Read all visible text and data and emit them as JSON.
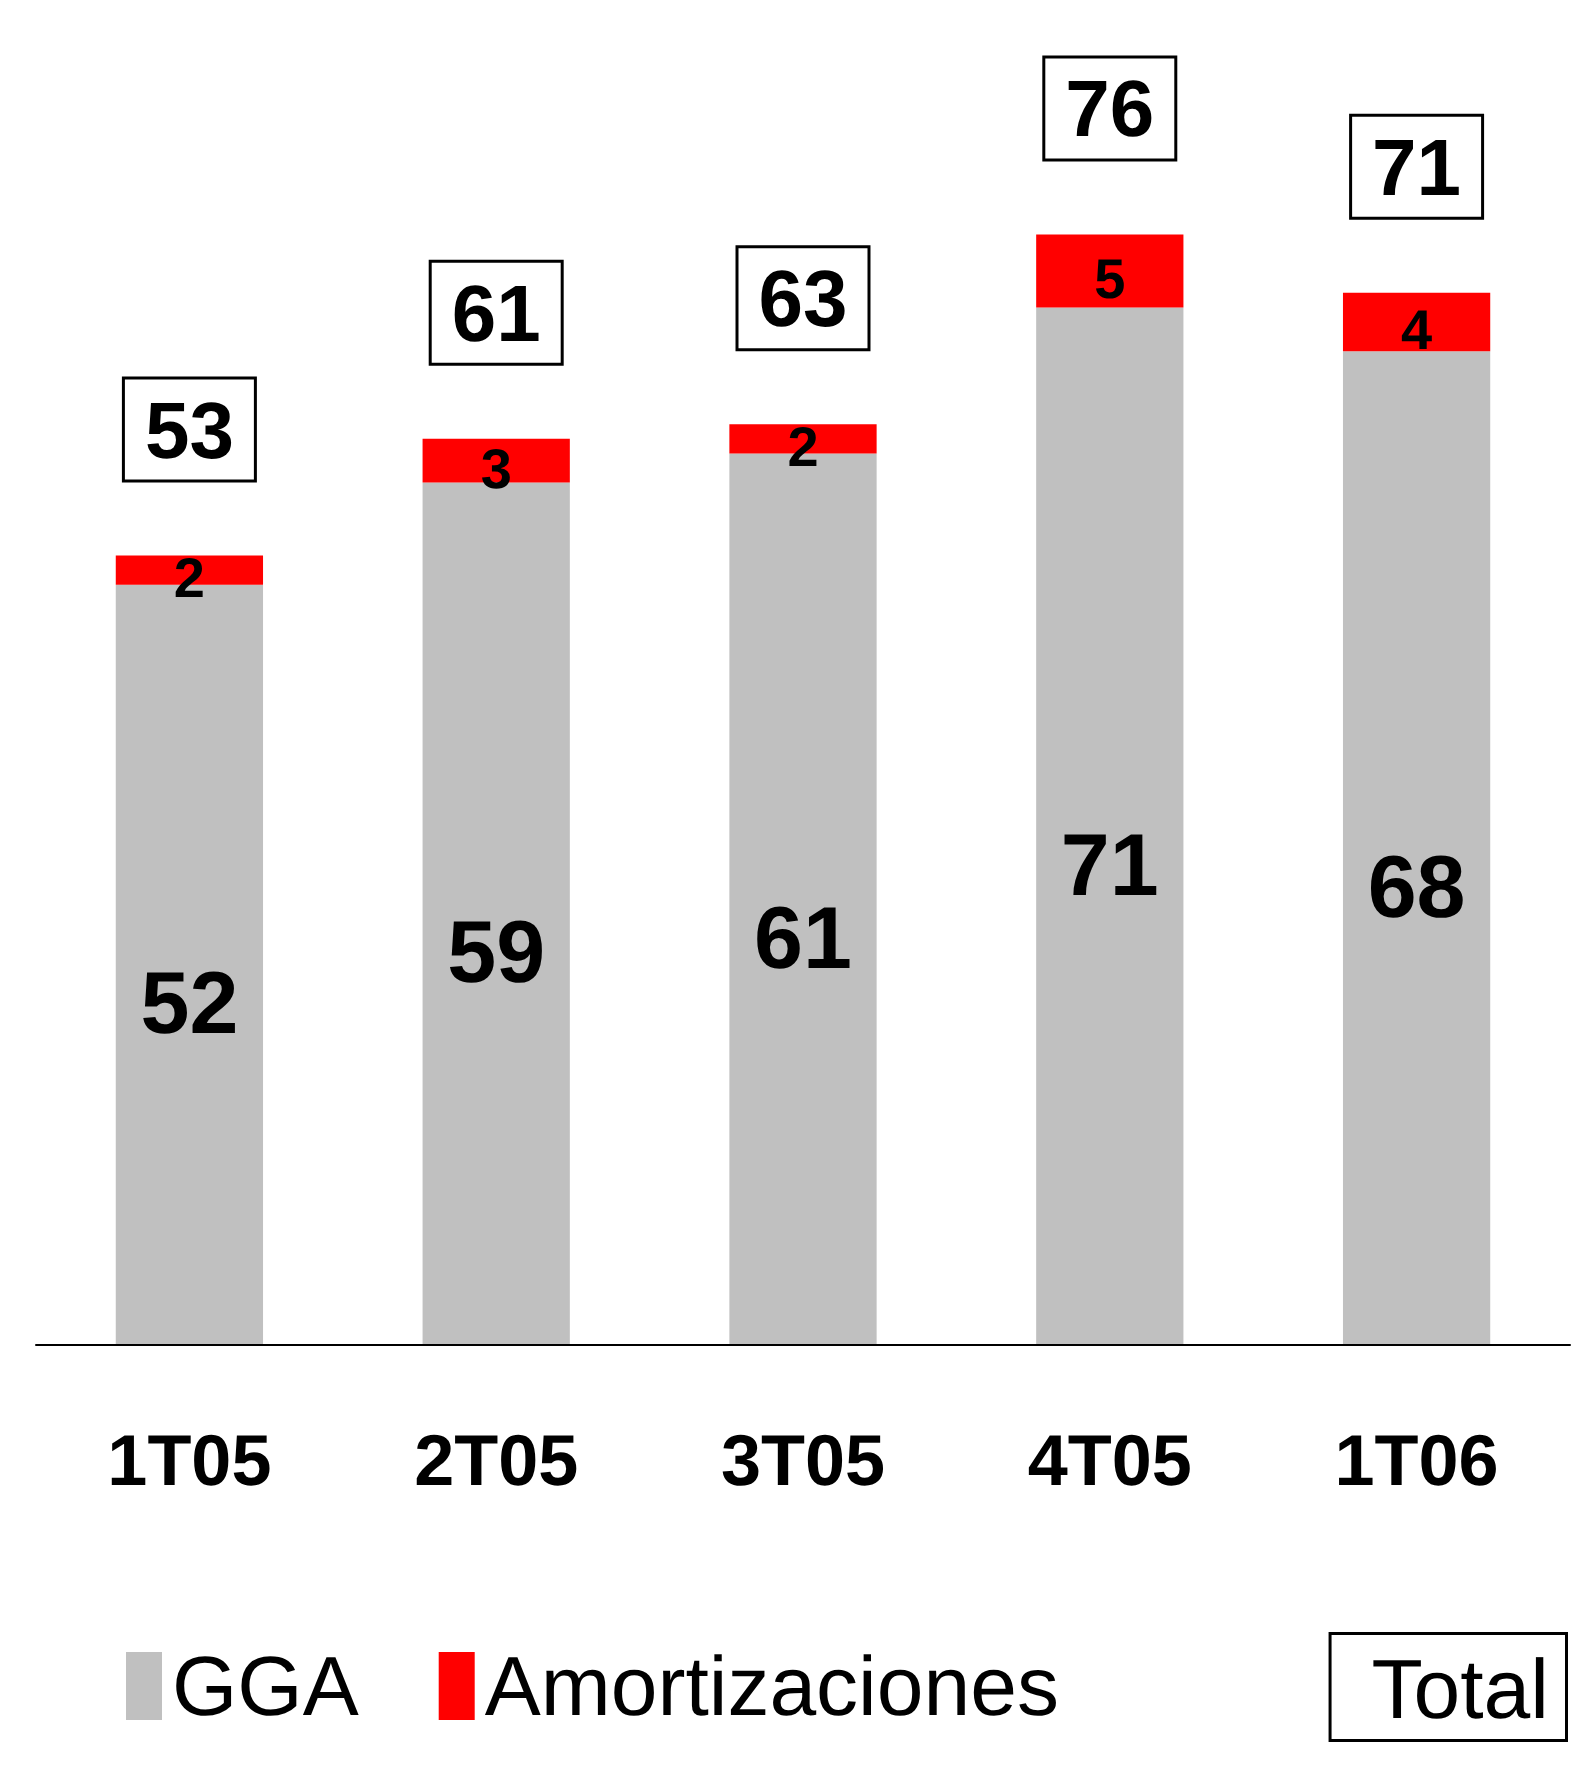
{
  "chart_data": {
    "type": "bar",
    "stacked": true,
    "categories": [
      "1T05",
      "2T05",
      "3T05",
      "4T05",
      "1T06"
    ],
    "series": [
      {
        "name": "GGA",
        "color": "#c0c0c0",
        "values": [
          52,
          59,
          61,
          71,
          68
        ]
      },
      {
        "name": "Amortizaciones",
        "color": "#ff0000",
        "values": [
          2,
          3,
          2,
          5,
          4
        ]
      }
    ],
    "totals": [
      "53",
      "61",
      "63",
      "76",
      "71"
    ],
    "legend_title": "Total",
    "data_labels": true,
    "legend": "bottom"
  }
}
